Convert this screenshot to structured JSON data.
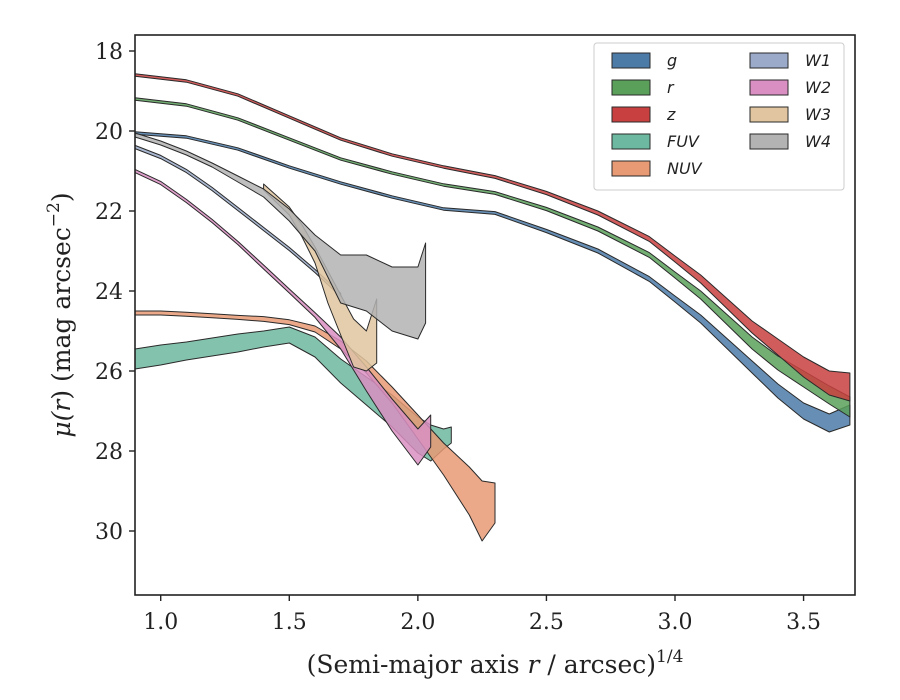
{
  "chart_data": {
    "type": "area",
    "xlabel": "(Semi-major axis r / arcsec)",
    "xlabel_parts": {
      "pre": "(Semi-major axis ",
      "var": "r",
      "post": " / arcsec)",
      "exp": "1/4"
    },
    "ylabel": "μ(r) (mag arcsec⁻²)",
    "ylabel_parts": {
      "mu": "μ(",
      "var": "r",
      "mid": ") (mag arcsec",
      "exp": "−2",
      "post": ")"
    },
    "xlim": [
      0.9,
      3.7
    ],
    "ylim": [
      31.6,
      17.6
    ],
    "y_inverted": true,
    "xticks": [
      "1.0",
      "1.5",
      "2.0",
      "2.5",
      "3.0",
      "3.5"
    ],
    "yticks": [
      "18",
      "20",
      "22",
      "24",
      "26",
      "28",
      "30"
    ],
    "grid": false,
    "legend_position": "top-right",
    "legend_columns": 2,
    "series": [
      {
        "name": "g",
        "color": "#4c7ba8",
        "x": [
          0.9,
          1.1,
          1.3,
          1.5,
          1.7,
          1.9,
          2.1,
          2.3,
          2.5,
          2.7,
          2.9,
          3.0,
          3.1,
          3.2,
          3.3,
          3.4,
          3.5,
          3.6,
          3.68
        ],
        "values": [
          20.05,
          20.15,
          20.45,
          20.9,
          21.3,
          21.65,
          21.95,
          22.05,
          22.5,
          23.0,
          23.7,
          24.2,
          24.7,
          25.3,
          25.9,
          26.5,
          27.0,
          27.3,
          27.1
        ],
        "width": [
          0.06,
          0.06,
          0.06,
          0.06,
          0.06,
          0.06,
          0.06,
          0.07,
          0.08,
          0.1,
          0.12,
          0.15,
          0.2,
          0.25,
          0.3,
          0.35,
          0.4,
          0.45,
          0.5
        ]
      },
      {
        "name": "r",
        "color": "#5aa05a",
        "x": [
          0.9,
          1.1,
          1.3,
          1.5,
          1.7,
          1.9,
          2.1,
          2.3,
          2.5,
          2.7,
          2.9,
          3.0,
          3.1,
          3.2,
          3.3,
          3.4,
          3.5,
          3.6,
          3.68
        ],
        "values": [
          19.2,
          19.35,
          19.7,
          20.2,
          20.7,
          21.05,
          21.35,
          21.55,
          21.95,
          22.45,
          23.1,
          23.6,
          24.1,
          24.7,
          25.3,
          25.8,
          26.2,
          26.6,
          26.9
        ],
        "width": [
          0.06,
          0.06,
          0.06,
          0.06,
          0.06,
          0.06,
          0.06,
          0.07,
          0.08,
          0.1,
          0.12,
          0.15,
          0.2,
          0.25,
          0.3,
          0.35,
          0.4,
          0.45,
          0.5
        ]
      },
      {
        "name": "z",
        "color": "#c94040",
        "x": [
          0.9,
          1.1,
          1.3,
          1.5,
          1.7,
          1.9,
          2.1,
          2.3,
          2.5,
          2.7,
          2.9,
          3.0,
          3.1,
          3.2,
          3.3,
          3.4,
          3.5,
          3.6,
          3.68
        ],
        "values": [
          18.6,
          18.75,
          19.1,
          19.65,
          20.2,
          20.6,
          20.9,
          21.15,
          21.55,
          22.05,
          22.7,
          23.2,
          23.7,
          24.3,
          24.9,
          25.4,
          25.9,
          26.3,
          26.4
        ],
        "width": [
          0.06,
          0.06,
          0.06,
          0.06,
          0.06,
          0.06,
          0.06,
          0.07,
          0.08,
          0.1,
          0.12,
          0.15,
          0.2,
          0.25,
          0.3,
          0.4,
          0.5,
          0.6,
          0.7
        ]
      },
      {
        "name": "FUV",
        "color": "#6db8a0",
        "x": [
          0.9,
          1.0,
          1.1,
          1.2,
          1.3,
          1.4,
          1.5,
          1.6,
          1.7,
          1.8,
          1.9,
          2.0,
          2.05,
          2.1,
          2.13
        ],
        "values": [
          25.7,
          25.6,
          25.5,
          25.4,
          25.3,
          25.2,
          25.1,
          25.4,
          26.0,
          26.5,
          27.0,
          27.6,
          27.8,
          27.7,
          27.6
        ],
        "width": [
          0.5,
          0.5,
          0.45,
          0.45,
          0.45,
          0.4,
          0.4,
          0.5,
          0.6,
          0.7,
          0.8,
          0.9,
          0.9,
          0.5,
          0.4
        ]
      },
      {
        "name": "NUV",
        "color": "#e89a74",
        "x": [
          0.9,
          1.0,
          1.1,
          1.2,
          1.3,
          1.4,
          1.5,
          1.6,
          1.7,
          1.8,
          1.9,
          2.0,
          2.1,
          2.2,
          2.25,
          2.3
        ],
        "values": [
          24.55,
          24.55,
          24.58,
          24.62,
          24.66,
          24.7,
          24.78,
          24.95,
          25.35,
          25.9,
          26.6,
          27.4,
          28.2,
          29.0,
          29.5,
          29.3
        ],
        "width": [
          0.1,
          0.1,
          0.1,
          0.1,
          0.1,
          0.12,
          0.12,
          0.15,
          0.2,
          0.3,
          0.4,
          0.6,
          0.8,
          1.2,
          1.5,
          1.0
        ]
      },
      {
        "name": "W1",
        "color": "#9aaac8",
        "x": [
          0.9,
          1.0,
          1.1,
          1.2,
          1.3,
          1.4,
          1.5,
          1.6,
          1.7
        ],
        "values": [
          20.4,
          20.65,
          21.0,
          21.45,
          21.95,
          22.45,
          22.95,
          23.5,
          24.1
        ],
        "width": [
          0.08,
          0.08,
          0.08,
          0.08,
          0.08,
          0.08,
          0.08,
          0.08,
          0.08
        ]
      },
      {
        "name": "W2",
        "color": "#d98fc2",
        "x": [
          0.9,
          1.0,
          1.1,
          1.2,
          1.3,
          1.4,
          1.5,
          1.6,
          1.7,
          1.8,
          1.9,
          2.0,
          2.05
        ],
        "values": [
          21.0,
          21.3,
          21.75,
          22.25,
          22.8,
          23.4,
          24.0,
          24.6,
          25.3,
          26.2,
          27.1,
          27.9,
          27.5
        ],
        "width": [
          0.08,
          0.08,
          0.08,
          0.08,
          0.08,
          0.1,
          0.1,
          0.12,
          0.3,
          0.6,
          0.8,
          0.9,
          0.8
        ]
      },
      {
        "name": "W3",
        "color": "#e0c5a0",
        "x": [
          1.4,
          1.5,
          1.55,
          1.6,
          1.65,
          1.7,
          1.75,
          1.8,
          1.84
        ],
        "values": [
          21.4,
          22.0,
          22.5,
          23.1,
          23.9,
          24.6,
          25.3,
          25.5,
          25.0
        ],
        "width": [
          0.15,
          0.2,
          0.3,
          0.4,
          0.8,
          1.0,
          1.2,
          1.0,
          1.6
        ]
      },
      {
        "name": "W4",
        "color": "#b3b3b3",
        "x": [
          0.9,
          1.0,
          1.1,
          1.2,
          1.3,
          1.4,
          1.5,
          1.6,
          1.7,
          1.8,
          1.9,
          2.0,
          2.03
        ],
        "values": [
          20.1,
          20.3,
          20.55,
          20.85,
          21.2,
          21.55,
          22.1,
          22.8,
          23.7,
          23.8,
          24.2,
          24.3,
          23.8
        ],
        "width": [
          0.1,
          0.1,
          0.1,
          0.1,
          0.15,
          0.2,
          0.3,
          0.4,
          1.2,
          1.4,
          1.6,
          1.8,
          2.0
        ]
      }
    ]
  }
}
